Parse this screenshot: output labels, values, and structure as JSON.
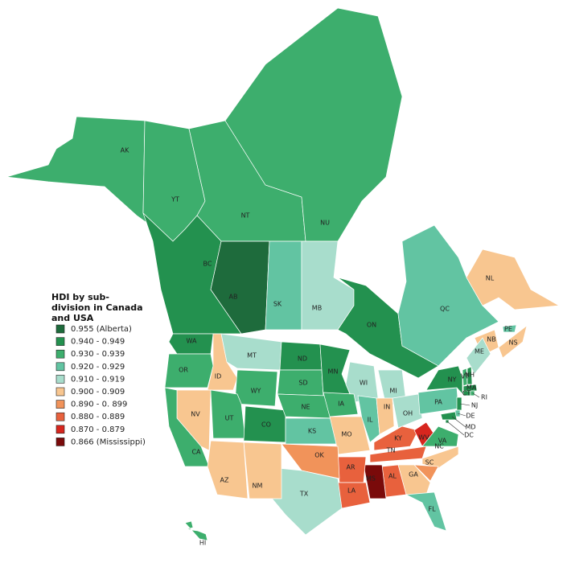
{
  "legend": {
    "title": "HDI by sub-division in Canada and USA",
    "entries": [
      {
        "label": "0.955 (Alberta)",
        "color": "#1e6b3c"
      },
      {
        "label": "0.940 - 0.949",
        "color": "#23914f"
      },
      {
        "label": "0.930 - 0.939",
        "color": "#3dae6d"
      },
      {
        "label": "0.920 - 0.929",
        "color": "#62c4a2"
      },
      {
        "label": "0.910 - 0.919",
        "color": "#a8ddcc"
      },
      {
        "label": "0.900 - 0.909",
        "color": "#f8c690"
      },
      {
        "label": "0.890 - 0. 899",
        "color": "#f1935a"
      },
      {
        "label": "0.880 - 0.889",
        "color": "#e8613d"
      },
      {
        "label": "0.870 - 0.879",
        "color": "#d7261e"
      },
      {
        "label": "0.866 (Mississippi)",
        "color": "#7a0a0a"
      }
    ]
  },
  "regions": [
    {
      "label": "AK",
      "color": "#3dae6d"
    },
    {
      "label": "YT",
      "color": "#3dae6d"
    },
    {
      "label": "NT",
      "color": "#3dae6d"
    },
    {
      "label": "NU",
      "color": "#3dae6d"
    },
    {
      "label": "BC",
      "color": "#23914f"
    },
    {
      "label": "AB",
      "color": "#1e6b3c"
    },
    {
      "label": "SK",
      "color": "#62c4a2"
    },
    {
      "label": "MB",
      "color": "#a8ddcc"
    },
    {
      "label": "ON",
      "color": "#23914f"
    },
    {
      "label": "QC",
      "color": "#62c4a2"
    },
    {
      "label": "NL",
      "color": "#f8c690"
    },
    {
      "label": "NB",
      "color": "#f8c690"
    },
    {
      "label": "NS",
      "color": "#f8c690"
    },
    {
      "label": "PE",
      "color": "#62c4a2"
    },
    {
      "label": "WA",
      "color": "#23914f"
    },
    {
      "label": "OR",
      "color": "#3dae6d"
    },
    {
      "label": "ID",
      "color": "#f8c690"
    },
    {
      "label": "MT",
      "color": "#a8ddcc"
    },
    {
      "label": "WY",
      "color": "#3dae6d"
    },
    {
      "label": "ND",
      "color": "#23914f"
    },
    {
      "label": "SD",
      "color": "#3dae6d"
    },
    {
      "label": "MN",
      "color": "#23914f"
    },
    {
      "label": "WI",
      "color": "#a8ddcc"
    },
    {
      "label": "MI",
      "color": "#a8ddcc"
    },
    {
      "label": "NV",
      "color": "#f8c690"
    },
    {
      "label": "CA",
      "color": "#3dae6d"
    },
    {
      "label": "UT",
      "color": "#3dae6d"
    },
    {
      "label": "CO",
      "color": "#23914f"
    },
    {
      "label": "NE",
      "color": "#3dae6d"
    },
    {
      "label": "IA",
      "color": "#3dae6d"
    },
    {
      "label": "KS",
      "color": "#62c4a2"
    },
    {
      "label": "MO",
      "color": "#f8c690"
    },
    {
      "label": "IL",
      "color": "#62c4a2"
    },
    {
      "label": "IN",
      "color": "#f8c690"
    },
    {
      "label": "OH",
      "color": "#a8ddcc"
    },
    {
      "label": "PA",
      "color": "#62c4a2"
    },
    {
      "label": "NY",
      "color": "#23914f"
    },
    {
      "label": "ME",
      "color": "#a8ddcc"
    },
    {
      "label": "KY",
      "color": "#e8613d"
    },
    {
      "label": "WV",
      "color": "#d7261e"
    },
    {
      "label": "VA",
      "color": "#3dae6d"
    },
    {
      "label": "TN",
      "color": "#e8613d"
    },
    {
      "label": "NC",
      "color": "#f8c690"
    },
    {
      "label": "SC",
      "color": "#f1935a"
    },
    {
      "label": "GA",
      "color": "#f8c690"
    },
    {
      "label": "AL",
      "color": "#e8613d"
    },
    {
      "label": "MS",
      "color": "#7a0a0a"
    },
    {
      "label": "AR",
      "color": "#e8613d"
    },
    {
      "label": "LA",
      "color": "#e8613d"
    },
    {
      "label": "OK",
      "color": "#f1935a"
    },
    {
      "label": "TX",
      "color": "#a8ddcc"
    },
    {
      "label": "NM",
      "color": "#f8c690"
    },
    {
      "label": "AZ",
      "color": "#f8c690"
    },
    {
      "label": "FL",
      "color": "#62c4a2"
    },
    {
      "label": "HI",
      "color": "#3dae6d"
    },
    {
      "label": "VT",
      "color": "#3dae6d"
    },
    {
      "label": "NH",
      "color": "#23914f"
    },
    {
      "label": "MA",
      "color": "#23914f"
    },
    {
      "label": "CT",
      "color": "#23914f"
    },
    {
      "label": "RI",
      "color": "#3dae6d"
    },
    {
      "label": "NJ",
      "color": "#23914f"
    },
    {
      "label": "DE",
      "color": "#62c4a2"
    },
    {
      "label": "MD",
      "color": "#23914f"
    },
    {
      "label": "DC",
      "color": "#23914f"
    }
  ]
}
